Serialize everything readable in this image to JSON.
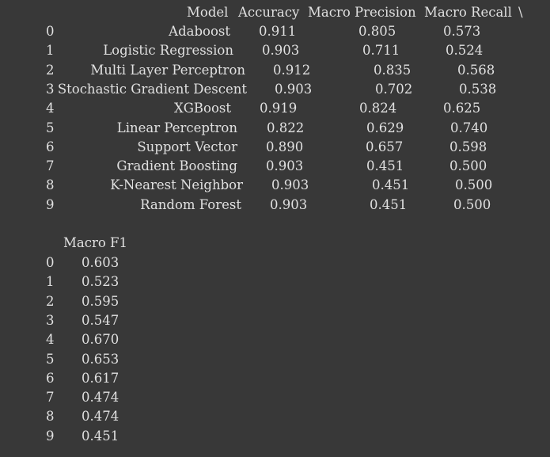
{
  "table1": {
    "headers": {
      "model": "Model",
      "accuracy": "Accuracy",
      "macro_precision": "Macro Precision",
      "macro_recall": "Macro Recall",
      "continuation": "\\"
    },
    "rows": [
      {
        "index": "0",
        "model": "Adaboost",
        "accuracy": "0.911",
        "macro_precision": "0.805",
        "macro_recall": "0.573"
      },
      {
        "index": "1",
        "model": "Logistic Regression",
        "accuracy": "0.903",
        "macro_precision": "0.711",
        "macro_recall": "0.524"
      },
      {
        "index": "2",
        "model": "Multi Layer Perceptron",
        "accuracy": "0.912",
        "macro_precision": "0.835",
        "macro_recall": "0.568"
      },
      {
        "index": "3",
        "model": "Stochastic Gradient Descent",
        "accuracy": "0.903",
        "macro_precision": "0.702",
        "macro_recall": "0.538"
      },
      {
        "index": "4",
        "model": "XGBoost",
        "accuracy": "0.919",
        "macro_precision": "0.824",
        "macro_recall": "0.625"
      },
      {
        "index": "5",
        "model": "Linear Perceptron",
        "accuracy": "0.822",
        "macro_precision": "0.629",
        "macro_recall": "0.740"
      },
      {
        "index": "6",
        "model": "Support Vector",
        "accuracy": "0.890",
        "macro_precision": "0.657",
        "macro_recall": "0.598"
      },
      {
        "index": "7",
        "model": "Gradient Boosting",
        "accuracy": "0.903",
        "macro_precision": "0.451",
        "macro_recall": "0.500"
      },
      {
        "index": "8",
        "model": "K-Nearest Neighbor",
        "accuracy": "0.903",
        "macro_precision": "0.451",
        "macro_recall": "0.500"
      },
      {
        "index": "9",
        "model": "Random Forest",
        "accuracy": "0.903",
        "macro_precision": "0.451",
        "macro_recall": "0.500"
      }
    ]
  },
  "table2": {
    "headers": {
      "macro_f1": "Macro F1"
    },
    "rows": [
      {
        "index": "0",
        "macro_f1": "0.603"
      },
      {
        "index": "1",
        "macro_f1": "0.523"
      },
      {
        "index": "2",
        "macro_f1": "0.595"
      },
      {
        "index": "3",
        "macro_f1": "0.547"
      },
      {
        "index": "4",
        "macro_f1": "0.670"
      },
      {
        "index": "5",
        "macro_f1": "0.653"
      },
      {
        "index": "6",
        "macro_f1": "0.617"
      },
      {
        "index": "7",
        "macro_f1": "0.474"
      },
      {
        "index": "8",
        "macro_f1": "0.474"
      },
      {
        "index": "9",
        "macro_f1": "0.451"
      }
    ]
  },
  "colors": {
    "background": "#383838",
    "text": "#e0e0e0"
  }
}
